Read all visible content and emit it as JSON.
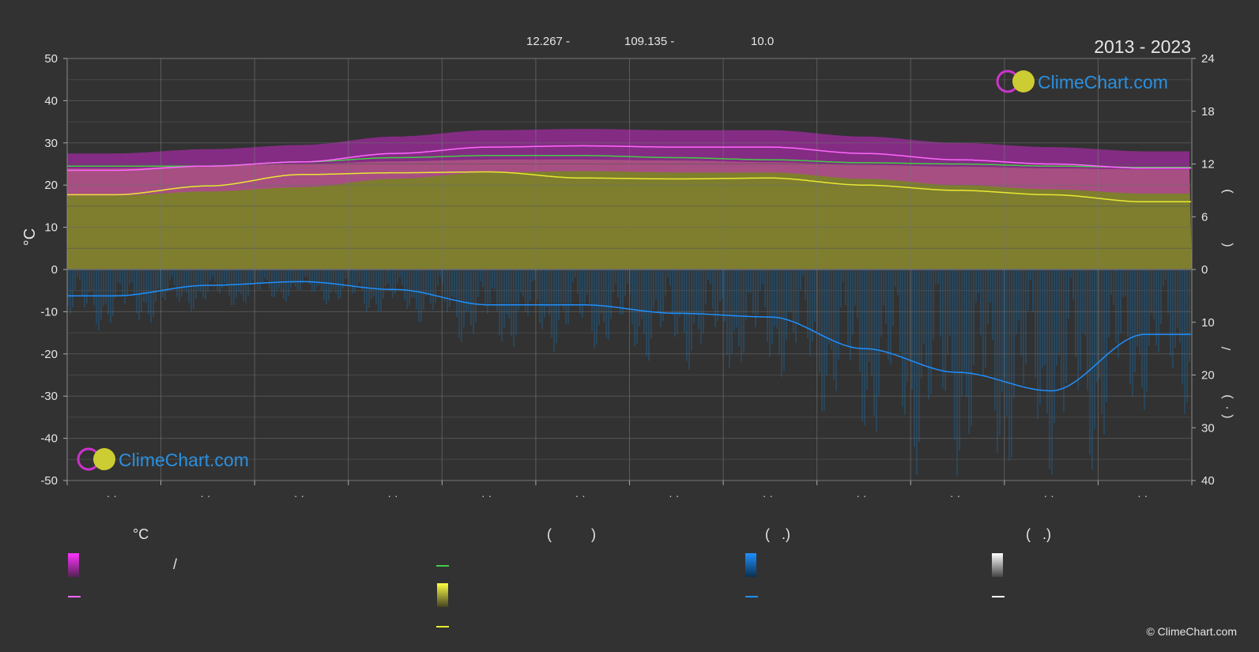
{
  "header": {
    "coords": [
      "12.267 -",
      "109.135 -",
      "10.0"
    ],
    "period": "2013 - 2023"
  },
  "brand": {
    "name": "ClimeChart.com",
    "copyright": "© ClimeChart.com"
  },
  "colors": {
    "background": "#323232",
    "grid": "#5a5a5a",
    "max_temp": "#ff66ff",
    "sea_temp": "#44cc44",
    "sunshine": "#e8e833",
    "rain": "#1e90ff",
    "daylight_fill": "#8c8c2e",
    "temp_band": "#c828c8",
    "rain_bars": "#1f5f8f"
  },
  "legend": {
    "temp_header": "°C",
    "col2_header": "(          )",
    "col3_header": "(   .)",
    "col4_header": "(   .)",
    "slash": "/"
  },
  "chart_data": {
    "type": "area",
    "left_axis": {
      "label": "°C",
      "range": [
        -50,
        50
      ],
      "ticks": [
        50,
        40,
        30,
        20,
        10,
        0,
        -10,
        -20,
        -30,
        -40,
        -50
      ]
    },
    "right_axis_top": {
      "range": [
        0,
        24
      ],
      "ticks": [
        24,
        18,
        12,
        6,
        0
      ],
      "label_chars": [
        ")",
        "(",
        "/"
      ]
    },
    "right_axis_bottom": {
      "range": [
        0,
        40
      ],
      "ticks": [
        0,
        10,
        20,
        30,
        40
      ],
      "label_chars": [
        ")",
        "(",
        "·"
      ]
    },
    "x_tick_labels": [
      "· ·",
      "· ·",
      "· ·",
      "· ·",
      "· ·",
      "· ·",
      "· ·",
      "· ·",
      "· ·",
      "· ·",
      "· ·",
      "· ·"
    ],
    "months": 12,
    "grid": true,
    "series": [
      {
        "key": "max_temp",
        "values": [
          23.5,
          24.5,
          25.5,
          27.5,
          29.0,
          29.3,
          29.0,
          29.0,
          27.5,
          26.0,
          25.0,
          24.0
        ]
      },
      {
        "key": "sea_temp",
        "values": [
          24.5,
          24.5,
          25.5,
          26.5,
          27.0,
          27.0,
          26.5,
          26.0,
          25.3,
          25.0,
          24.5,
          24.2
        ]
      },
      {
        "key": "daylight_hours",
        "values": [
          11.5,
          11.8,
          12.0,
          12.3,
          12.5,
          12.5,
          12.4,
          12.2,
          11.9,
          11.7,
          11.5,
          11.4
        ]
      },
      {
        "key": "sunshine_hours",
        "values": [
          8.5,
          9.5,
          10.8,
          11.0,
          11.1,
          10.4,
          10.3,
          10.4,
          9.6,
          9.0,
          8.5,
          7.7
        ]
      },
      {
        "key": "precipitation_mm",
        "values": [
          5.0,
          3.0,
          2.3,
          3.8,
          6.7,
          6.7,
          8.3,
          9.0,
          15.0,
          19.5,
          23.0,
          12.3
        ]
      }
    ]
  }
}
